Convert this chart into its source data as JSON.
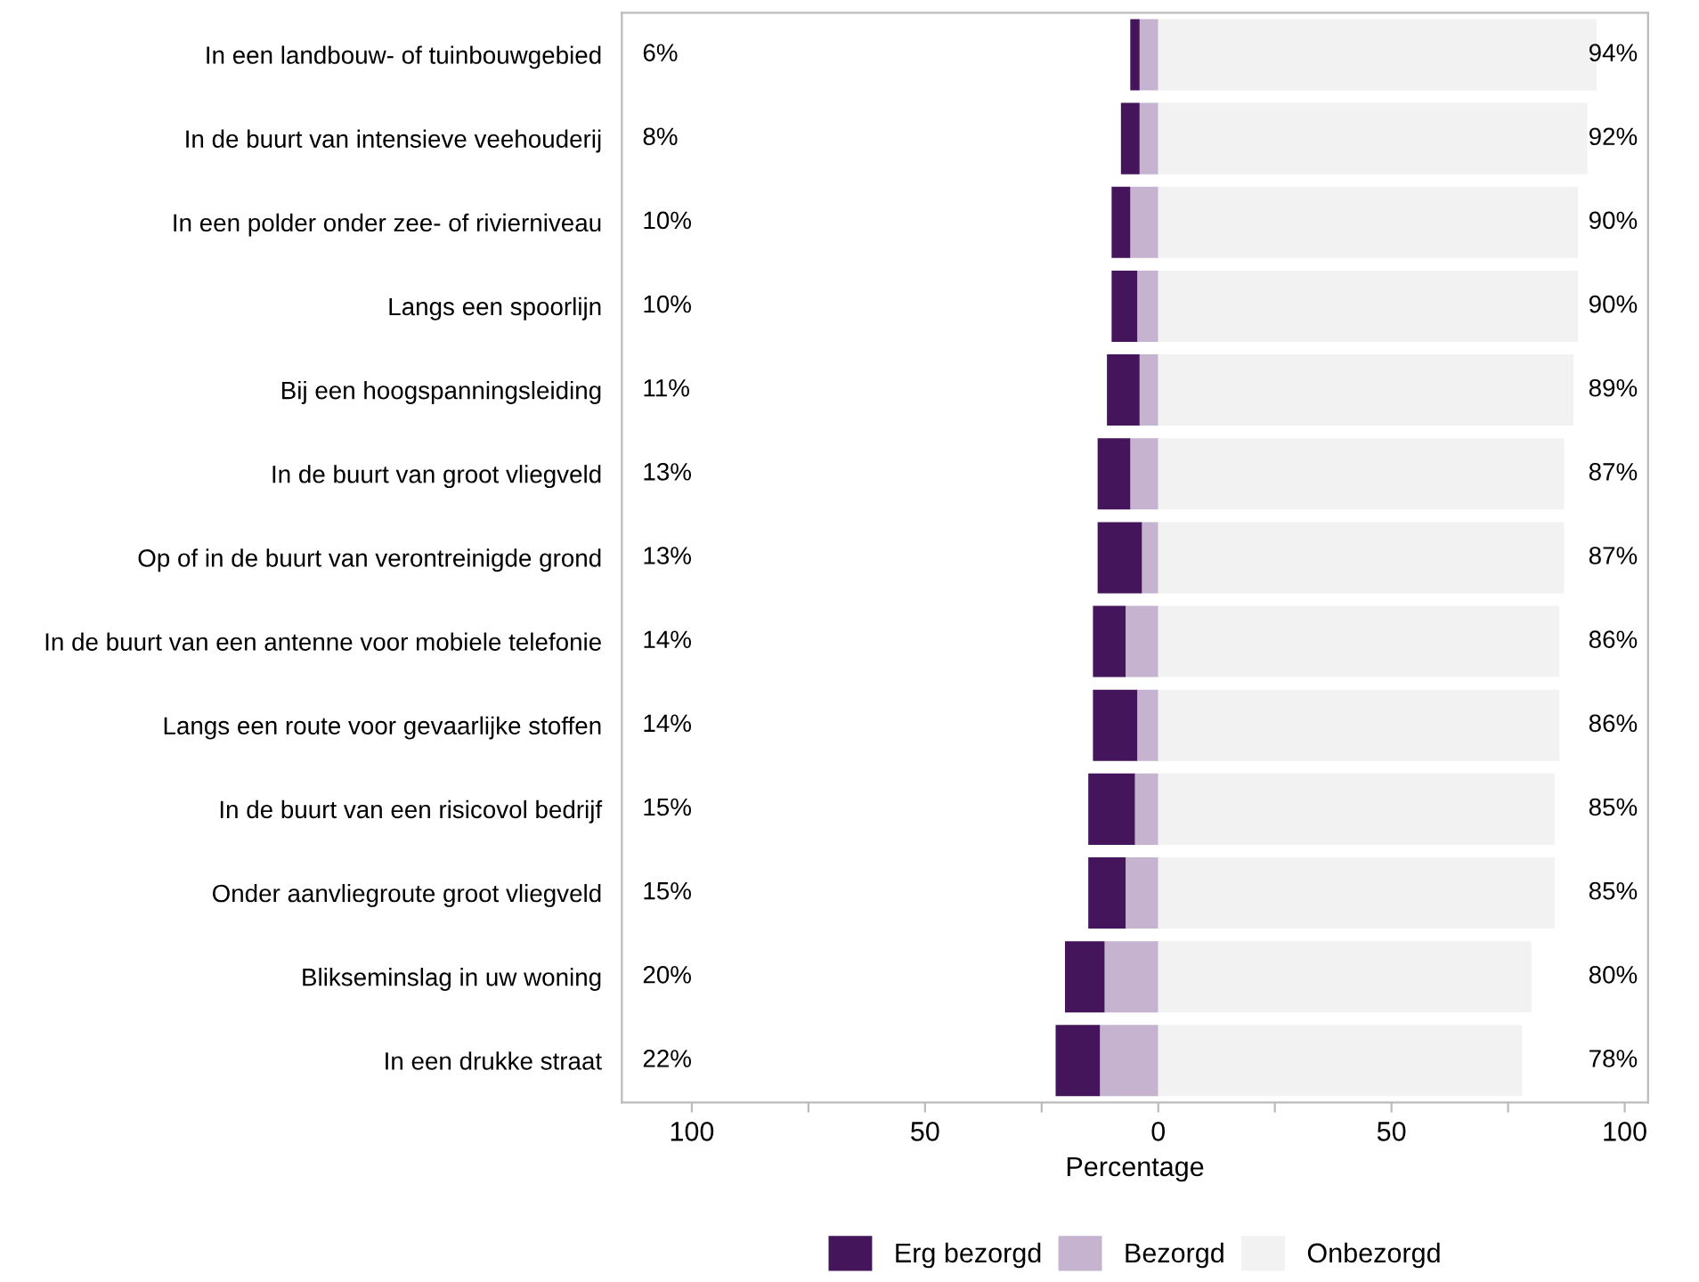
{
  "chart_data": {
    "type": "bar",
    "orientation": "horizontal",
    "stacked": true,
    "xlabel": "Percentage",
    "categories": [
      "In een landbouw- of tuinbouwgebied",
      "In de buurt van intensieve veehouderij",
      "In een polder onder zee- of rivierniveau",
      "Langs een spoorlijn",
      "Bij een hoogspanningsleiding",
      "In de buurt van groot vliegveld",
      "Op of in de buurt van verontreinigde grond",
      "In de buurt van een antenne voor mobiele telefonie",
      "Langs een route voor gevaarlijke stoffen",
      "In de buurt van een risicovol bedrijf",
      "Onder aanvliegroute groot vliegveld",
      "Blikseminslag in uw woning",
      "In een drukke straat"
    ],
    "series": [
      {
        "name": "Bezorgd",
        "color": "#c5b3cf",
        "values": [
          -4,
          -4,
          -6,
          -4.5,
          -4,
          -6,
          -3.5,
          -7,
          -4.5,
          -5,
          -7,
          -11.5,
          -12.5
        ]
      },
      {
        "name": "Erg bezorgd",
        "color": "#44155a",
        "values": [
          -2,
          -4,
          -4,
          -5.5,
          -7,
          -7,
          -9.5,
          -7,
          -9.5,
          -10,
          -8,
          -8.5,
          -9.5
        ]
      },
      {
        "name": "Onbezorgd",
        "color": "#f2f2f2",
        "values": [
          94,
          92,
          90,
          90,
          89,
          87,
          87,
          86,
          86,
          85,
          85,
          80,
          78
        ],
        "value_labels": [
          "94%",
          "92%",
          "90%",
          "90%",
          "89%",
          "87%",
          "87%",
          "86%",
          "86%",
          "85%",
          "85%",
          "80%",
          "78%"
        ]
      }
    ],
    "annotations": [
      "6%",
      "8%",
      "10%",
      "10%",
      "11%",
      "13%",
      "13%",
      "14%",
      "14%",
      "15%",
      "15%",
      "20%",
      "22%"
    ],
    "xlim": [
      -115,
      105
    ],
    "xticks": [
      {
        "value": -100,
        "label": "100"
      },
      {
        "value": -75,
        "label": null
      },
      {
        "value": -50,
        "label": "50"
      },
      {
        "value": -25,
        "label": null
      },
      0,
      {
        "value": 25,
        "label": null
      },
      50,
      {
        "value": 75,
        "label": null
      },
      100
    ],
    "legend": "bottom",
    "grid": false
  }
}
